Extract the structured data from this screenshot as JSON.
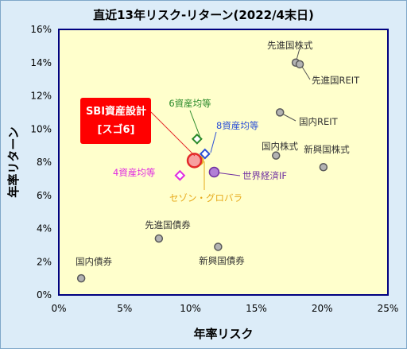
{
  "chart_data": {
    "type": "scatter",
    "title": "直近13年リスク-リターン(2022/4末日)",
    "xlabel": "年率リスク",
    "ylabel": "年率リターン",
    "xlim": [
      0,
      25
    ],
    "ylim": [
      0,
      16
    ],
    "xticks": [
      0,
      5,
      10,
      15,
      20,
      25
    ],
    "yticks": [
      0,
      2,
      4,
      6,
      8,
      10,
      12,
      14,
      16
    ],
    "tick_suffix": "%",
    "grid": false,
    "points": [
      {
        "name": "先進国株式",
        "x": 18.0,
        "y": 14.0,
        "marker": "circle",
        "color": "#9a9a9a"
      },
      {
        "name": "先進国REIT",
        "x": 18.3,
        "y": 13.9,
        "marker": "circle",
        "color": "#9a9a9a"
      },
      {
        "name": "国内REIT",
        "x": 16.8,
        "y": 11.0,
        "marker": "circle",
        "color": "#9a9a9a"
      },
      {
        "name": "国内株式",
        "x": 16.5,
        "y": 8.4,
        "marker": "circle",
        "color": "#9a9a9a"
      },
      {
        "name": "新興国株式",
        "x": 20.1,
        "y": 7.7,
        "marker": "circle",
        "color": "#9a9a9a"
      },
      {
        "name": "先進国債券",
        "x": 7.6,
        "y": 3.4,
        "marker": "circle",
        "color": "#9a9a9a"
      },
      {
        "name": "新興国債券",
        "x": 12.1,
        "y": 2.9,
        "marker": "circle",
        "color": "#9a9a9a"
      },
      {
        "name": "国内債券",
        "x": 1.7,
        "y": 1.0,
        "marker": "circle",
        "color": "#9a9a9a"
      },
      {
        "name": "世界経済IF",
        "x": 11.8,
        "y": 7.4,
        "marker": "circle",
        "color": "#7030a0"
      },
      {
        "name": "SBI資産設計[スゴ6]",
        "x": 10.3,
        "y": 8.1,
        "marker": "bigcircle",
        "color": "#e32a2a"
      },
      {
        "name": "セゾン・グロバラ",
        "x": 10.6,
        "y": 8.1,
        "marker": "circle",
        "color": "#e6a817"
      },
      {
        "name": "6資産均等",
        "x": 10.5,
        "y": 9.4,
        "marker": "diamond",
        "color": "#2a8a2a"
      },
      {
        "name": "8資産均等",
        "x": 11.1,
        "y": 8.5,
        "marker": "diamond",
        "color": "#2a4fd6"
      },
      {
        "name": "4資産均等",
        "x": 9.2,
        "y": 7.2,
        "marker": "diamond",
        "color": "#e02ce0"
      }
    ],
    "labels": [
      {
        "text": "先進国株式",
        "color": "#333333"
      },
      {
        "text": "先進国REIT",
        "color": "#333333"
      },
      {
        "text": "国内REIT",
        "color": "#333333"
      },
      {
        "text": "国内株式",
        "color": "#333333"
      },
      {
        "text": "新興国株式",
        "color": "#333333"
      },
      {
        "text": "先進国債券",
        "color": "#333333"
      },
      {
        "text": "新興国債券",
        "color": "#333333"
      },
      {
        "text": "国内債券",
        "color": "#333333"
      },
      {
        "text": "世界経済IF",
        "color": "#7030a0"
      },
      {
        "text": "6資産均等",
        "color": "#2a8a2a"
      },
      {
        "text": "8資産均等",
        "color": "#2a4fd6"
      },
      {
        "text": "4資産均等",
        "color": "#e02ce0"
      },
      {
        "text": "セゾン・グロバラ",
        "color": "#e6a817"
      }
    ],
    "callout": {
      "line1": "SBI資産設計",
      "line2": "[スゴ6]",
      "fill": "#ff0000",
      "text_color": "#ffffff"
    }
  },
  "colors": {
    "plot_bg": "#ffffcc",
    "axis": "#000080",
    "frame_bg": "#dcecf8"
  }
}
